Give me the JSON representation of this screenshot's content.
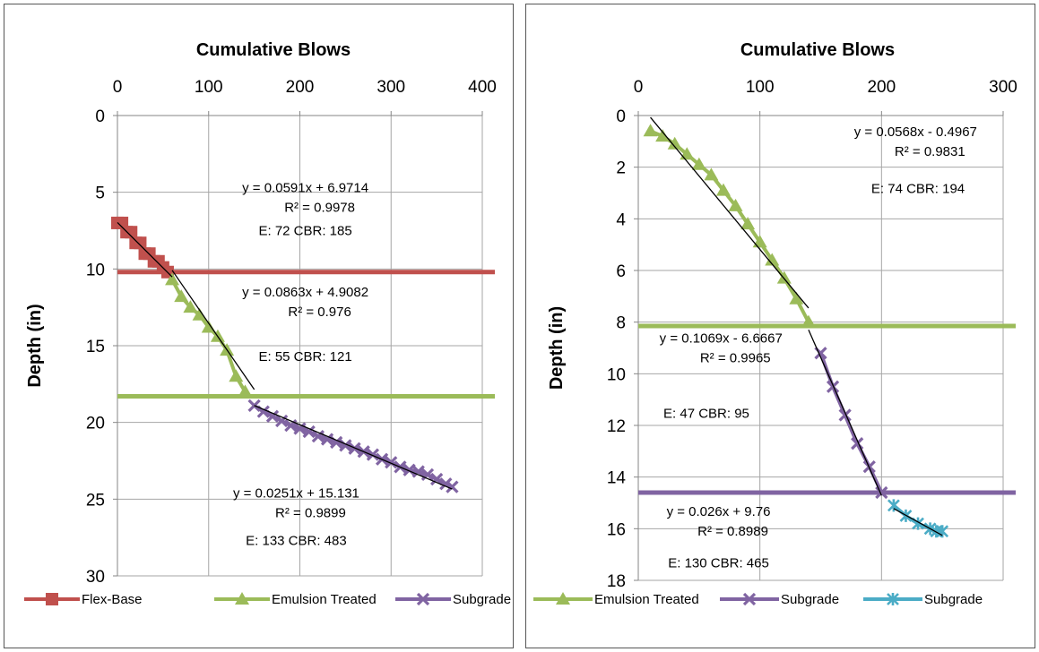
{
  "chart_data": [
    {
      "type": "scatter",
      "title": "Cumulative Blows",
      "xlabel": "",
      "ylabel": "Depth (in)",
      "xlim": [
        0,
        400
      ],
      "ylim": [
        0,
        30
      ],
      "xticks": [
        "0",
        "100",
        "200",
        "300",
        "400"
      ],
      "yticks": [
        "0",
        "5",
        "10",
        "15",
        "20",
        "25",
        "30"
      ],
      "y_inverted": true,
      "grid": "vertical and horizontal",
      "legend_position": "bottom",
      "layer_boundaries": [
        {
          "depth": 10.2,
          "color": "#C0504D"
        },
        {
          "depth": 18.3,
          "color": "#9BBB59"
        }
      ],
      "series": [
        {
          "name": "Flex-Base",
          "color": "#C0504D",
          "marker": "square",
          "x": [
            0,
            5,
            10,
            15,
            20,
            25,
            30,
            35,
            40,
            45,
            50,
            55
          ],
          "y": [
            7.0,
            7.0,
            7.6,
            7.6,
            8.3,
            8.3,
            9.0,
            9.0,
            9.5,
            9.5,
            9.9,
            10.2
          ]
        },
        {
          "name": "Emulsion Treated",
          "color": "#9BBB59",
          "marker": "triangle",
          "x": [
            60,
            70,
            80,
            90,
            100,
            110,
            120,
            130,
            140
          ],
          "y": [
            10.7,
            11.8,
            12.5,
            13.0,
            13.8,
            14.4,
            15.3,
            17.0,
            18.0
          ]
        },
        {
          "name": "Subgrade",
          "color": "#8064A2",
          "marker": "x",
          "x": [
            150,
            160,
            170,
            180,
            190,
            200,
            210,
            220,
            230,
            240,
            250,
            260,
            270,
            280,
            290,
            300,
            310,
            320,
            330,
            340,
            350,
            360,
            367
          ],
          "y": [
            18.9,
            19.3,
            19.6,
            19.9,
            20.2,
            20.4,
            20.6,
            20.9,
            21.1,
            21.3,
            21.5,
            21.7,
            21.9,
            22.1,
            22.4,
            22.6,
            22.9,
            23.1,
            23.2,
            23.4,
            23.7,
            24.0,
            24.2
          ]
        }
      ],
      "trendlines": [
        {
          "x": [
            0,
            60
          ],
          "y": [
            6.9714,
            10.5174
          ]
        },
        {
          "x": [
            60,
            150
          ],
          "y": [
            10.0862,
            17.8532
          ]
        },
        {
          "x": [
            150,
            367
          ],
          "y": [
            18.896,
            24.3427
          ]
        }
      ],
      "annotations": [
        {
          "lines": [
            "y = 0.0591x + 6.9714",
            "R² = 0.9978"
          ],
          "depth": 5,
          "x": 206
        },
        {
          "lines": [
            "E: 72     CBR: 185"
          ],
          "depth": 7.8,
          "x": 206
        },
        {
          "lines": [
            "y = 0.0863x + 4.9082",
            "R² = 0.976"
          ],
          "depth": 11.8,
          "x": 206
        },
        {
          "lines": [
            "E: 55     CBR: 121"
          ],
          "depth": 16.0,
          "x": 206
        },
        {
          "lines": [
            "y = 0.0251x + 15.131",
            "R² = 0.9899"
          ],
          "depth": 24.9,
          "x": 196
        },
        {
          "lines": [
            "E: 133     CBR: 483"
          ],
          "depth": 28.0,
          "x": 196
        }
      ]
    },
    {
      "type": "scatter",
      "title": "Cumulative Blows",
      "xlabel": "",
      "ylabel": "Depth (in)",
      "xlim": [
        0,
        300
      ],
      "ylim": [
        0,
        18
      ],
      "xticks": [
        "0",
        "100",
        "200",
        "300"
      ],
      "yticks": [
        "0",
        "2",
        "4",
        "6",
        "8",
        "10",
        "12",
        "14",
        "16",
        "18"
      ],
      "y_inverted": true,
      "grid": "vertical and horizontal",
      "legend_position": "bottom",
      "layer_boundaries": [
        {
          "depth": 8.15,
          "color": "#9BBB59"
        },
        {
          "depth": 14.6,
          "color": "#8064A2"
        }
      ],
      "series": [
        {
          "name": "Emulsion Treated",
          "color": "#9BBB59",
          "marker": "triangle",
          "x": [
            10,
            20,
            30,
            40,
            50,
            60,
            70,
            80,
            90,
            100,
            110,
            120,
            130,
            140
          ],
          "y": [
            0.6,
            0.8,
            1.1,
            1.5,
            1.9,
            2.3,
            2.9,
            3.5,
            4.2,
            4.9,
            5.6,
            6.3,
            7.1,
            8.0
          ]
        },
        {
          "name": "Subgrade",
          "color": "#8064A2",
          "marker": "x",
          "x": [
            150,
            160,
            170,
            180,
            190,
            200
          ],
          "y": [
            9.2,
            10.5,
            11.6,
            12.7,
            13.6,
            14.6
          ]
        },
        {
          "name": "Subgrade",
          "color": "#4BACC6",
          "marker": "asterisk",
          "x": [
            210,
            220,
            230,
            240,
            245,
            250
          ],
          "y": [
            15.1,
            15.5,
            15.8,
            16.0,
            16.1,
            16.1
          ]
        }
      ],
      "trendlines": [
        {
          "x": [
            10,
            140
          ],
          "y": [
            0.0713,
            7.4553
          ]
        },
        {
          "x": [
            140,
            200
          ],
          "y": [
            8.2993,
            14.7133
          ]
        },
        {
          "x": [
            210,
            250
          ],
          "y": [
            15.22,
            16.26
          ]
        }
      ],
      "annotations": [
        {
          "lines": [
            "y = 0.0568x - 0.4967",
            "R² = 0.9831"
          ],
          "depth": 0.8,
          "x": 228
        },
        {
          "lines": [
            "E: 74     CBR: 194"
          ],
          "depth": 3.0,
          "x": 230
        },
        {
          "lines": [
            "y = 0.1069x - 6.6667",
            "R² = 0.9965"
          ],
          "depth": 8.8,
          "x": 68
        },
        {
          "lines": [
            "E: 47     CBR: 95"
          ],
          "depth": 11.7,
          "x": 56
        },
        {
          "lines": [
            "y = 0.026x + 9.76",
            "R² = 0.8989"
          ],
          "depth": 15.5,
          "x": 66
        },
        {
          "lines": [
            "E: 130     CBR: 465"
          ],
          "depth": 17.5,
          "x": 66
        }
      ]
    }
  ]
}
